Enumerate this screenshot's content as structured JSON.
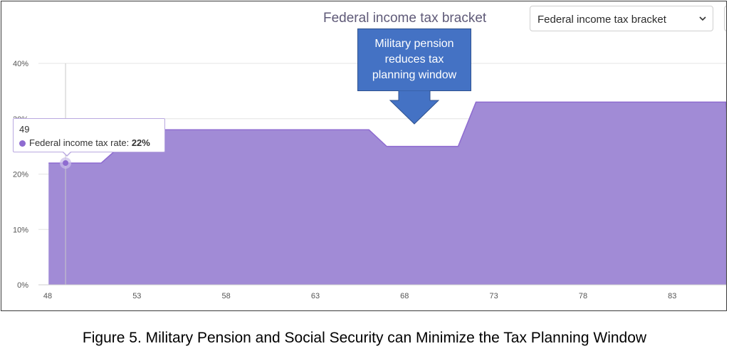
{
  "header": {
    "title": "Federal income tax bracket",
    "select_value": "Federal income tax bracket"
  },
  "tooltip": {
    "x": "49",
    "series_label": "Federal income tax rate:",
    "value": "22%"
  },
  "callout": {
    "lines": [
      "Military pension",
      "reduces tax",
      "planning window"
    ]
  },
  "caption": "Figure 5. Military Pension and Social Security can Minimize the Tax Planning Window",
  "colors": {
    "fill": "#a18bd6",
    "line": "#8e6bd0",
    "callout": "#4472c4"
  },
  "chart_data": {
    "type": "area",
    "title": "Federal income tax bracket",
    "xlabel": "",
    "ylabel": "",
    "x_ticks": [
      48,
      53,
      58,
      63,
      68,
      73,
      78,
      83
    ],
    "y_ticks": [
      {
        "value": 0,
        "label": "0%"
      },
      {
        "value": 10,
        "label": "10%"
      },
      {
        "value": 20,
        "label": "20%"
      },
      {
        "value": 30,
        "label": "30%"
      },
      {
        "value": 40,
        "label": "40%"
      }
    ],
    "xlim": [
      48,
      86.1
    ],
    "ylim": [
      0,
      40
    ],
    "grid": true,
    "series": [
      {
        "points": [
          [
            48.05,
            22
          ],
          [
            51,
            22
          ],
          [
            51.7,
            24
          ],
          [
            52,
            24
          ],
          [
            52.6,
            28
          ],
          [
            66,
            28
          ],
          [
            67,
            25
          ],
          [
            71,
            25
          ],
          [
            72,
            33
          ],
          [
            86,
            33
          ],
          [
            86.1,
            29
          ]
        ]
      }
    ],
    "highlight": {
      "x": 49,
      "y": 22
    }
  }
}
